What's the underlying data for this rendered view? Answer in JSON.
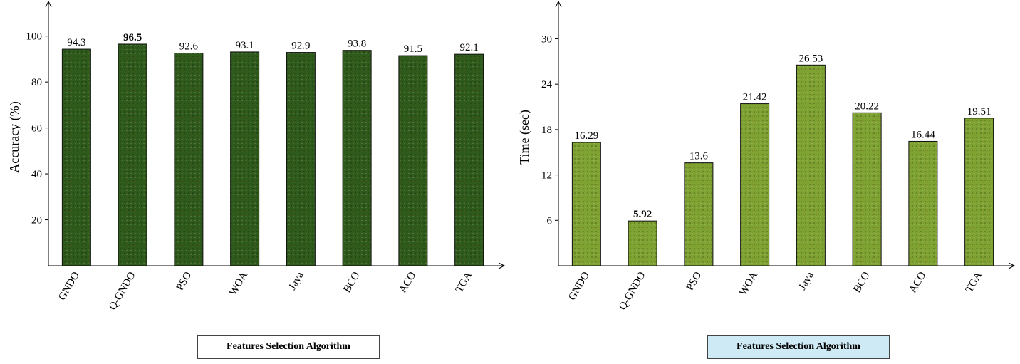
{
  "charts_meta": {
    "left_bar_color": "#2e5a1c",
    "right_bar_color": "#7ea332",
    "right_xlabel_bg": "#cdeaf5"
  },
  "chart_data": [
    {
      "type": "bar",
      "categories": [
        "GNDO",
        "Q-GNDO",
        "PSO",
        "WOA",
        "Jaya",
        "BCO",
        "ACO",
        "TGA"
      ],
      "values": [
        94.3,
        96.5,
        92.6,
        93.1,
        92.9,
        93.8,
        91.5,
        92.1
      ],
      "value_labels": [
        "94.3",
        "96.5",
        "92.6",
        "93.1",
        "92.9",
        "93.8",
        "91.5",
        "92.1"
      ],
      "highlight_index": 1,
      "xlabel": "Features Selection Algorithm",
      "ylabel": "Accuracy (%)",
      "ylim": [
        0,
        112
      ],
      "yticks": [
        20,
        40,
        60,
        80,
        100
      ],
      "ytick_labels": [
        "20",
        "40",
        "60",
        "80",
        "100"
      ],
      "grid": false,
      "color": "#2e5a1c"
    },
    {
      "type": "bar",
      "categories": [
        "GNDO",
        "Q-GNDO",
        "PSO",
        "WOA",
        "Jaya",
        "BCO",
        "ACO",
        "TGA"
      ],
      "values": [
        16.29,
        5.92,
        13.6,
        21.42,
        26.53,
        20.22,
        16.44,
        19.51
      ],
      "value_labels": [
        "16.29",
        "5.92",
        "13.6",
        "21.42",
        "26.53",
        "20.22",
        "16.44",
        "19.51"
      ],
      "highlight_index": 1,
      "xlabel": "Features Selection Algorithm",
      "ylabel": "Time (sec)",
      "ylim": [
        0,
        34
      ],
      "yticks": [
        6,
        12,
        18,
        24,
        30
      ],
      "ytick_labels": [
        "6",
        "12",
        "18",
        "24",
        "30"
      ],
      "grid": false,
      "color": "#7ea332"
    }
  ]
}
